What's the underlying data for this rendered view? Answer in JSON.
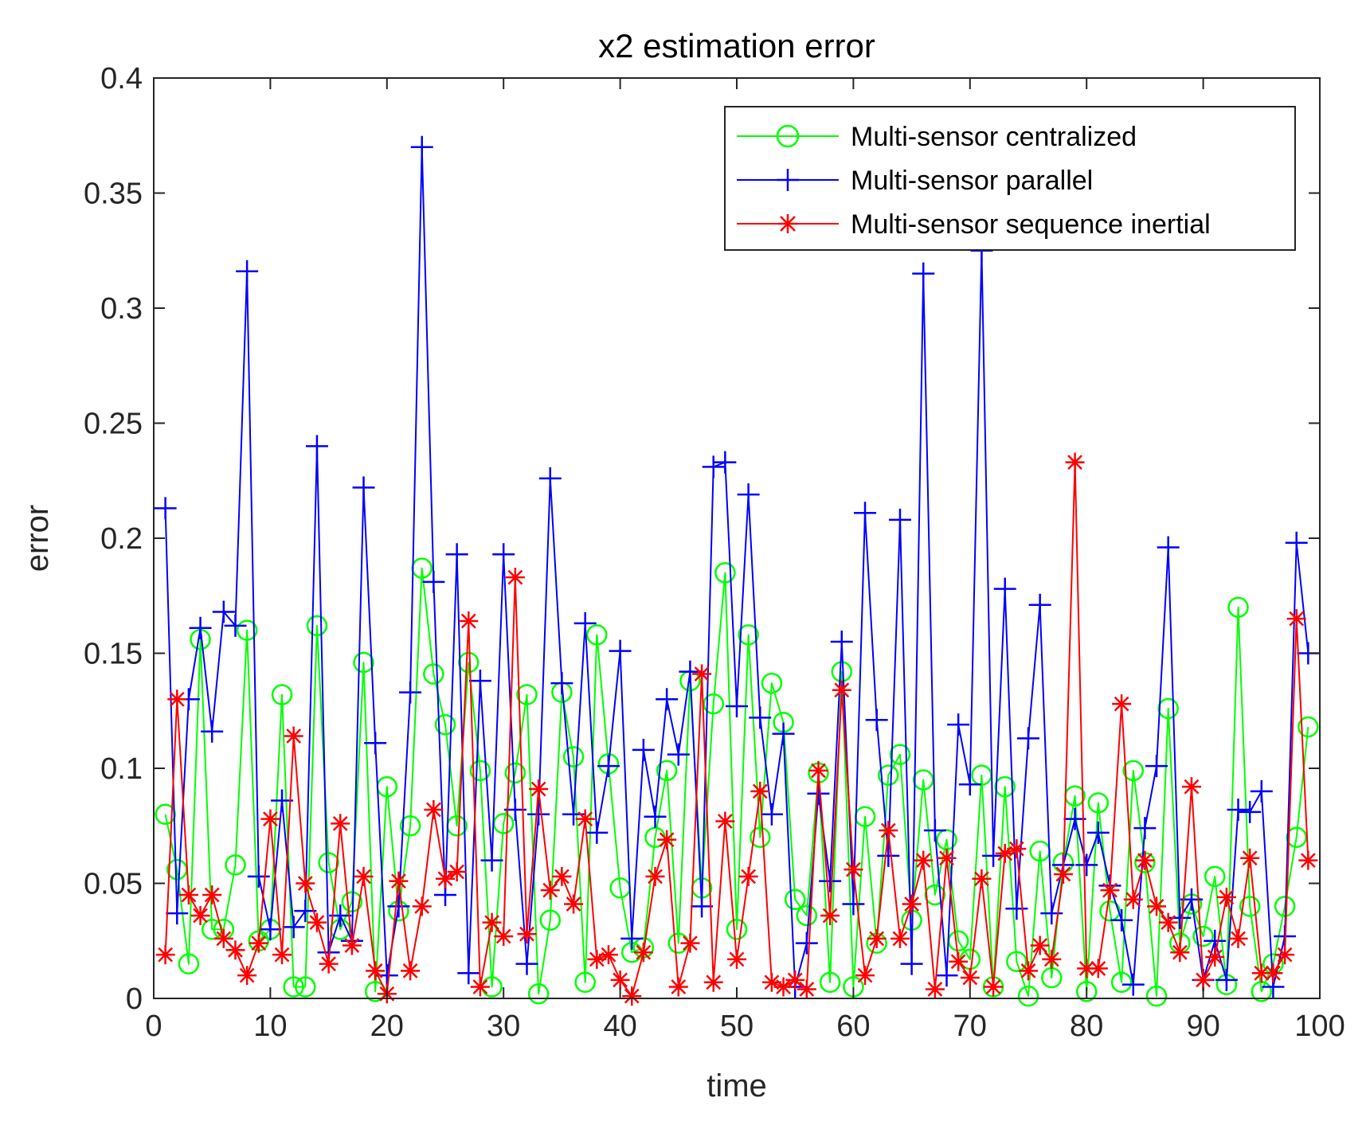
{
  "chart_data": {
    "type": "line",
    "title": "x2 estimation error",
    "xlabel": "time",
    "ylabel": "error",
    "xlim": [
      0,
      100
    ],
    "ylim": [
      0,
      0.4
    ],
    "xticks": [
      0,
      10,
      20,
      30,
      40,
      50,
      60,
      70,
      80,
      90,
      100
    ],
    "yticks": [
      0,
      0.05,
      0.1,
      0.15,
      0.2,
      0.25,
      0.3,
      0.35,
      0.4
    ],
    "xtick_labels": [
      "0",
      "10",
      "20",
      "30",
      "40",
      "50",
      "60",
      "70",
      "80",
      "90",
      "100"
    ],
    "ytick_labels": [
      "0",
      "0.05",
      "0.1",
      "0.15",
      "0.2",
      "0.25",
      "0.3",
      "0.35",
      "0.4"
    ],
    "grid": false,
    "legend_position": "top-right",
    "series": [
      {
        "name": "Multi-sensor centralized",
        "color": "#00ff00",
        "marker": "circle",
        "values": [
          0.08,
          0.056,
          0.015,
          0.156,
          0.03,
          0.03,
          0.058,
          0.16,
          0.025,
          0.03,
          0.132,
          0.005,
          0.005,
          0.162,
          0.059,
          0.03,
          0.042,
          0.146,
          0.003,
          0.092,
          0.038,
          0.075,
          0.187,
          0.141,
          0.119,
          0.075,
          0.146,
          0.099,
          0.005,
          0.076,
          0.098,
          0.132,
          0.002,
          0.034,
          0.133,
          0.105,
          0.007,
          0.158,
          0.102,
          0.048,
          0.02,
          0.022,
          0.07,
          0.099,
          0.024,
          0.138,
          0.048,
          0.128,
          0.185,
          0.03,
          0.158,
          0.07,
          0.137,
          0.12,
          0.043,
          0.036,
          0.098,
          0.007,
          0.142,
          0.005,
          0.079,
          0.024,
          0.097,
          0.106,
          0.034,
          0.095,
          0.045,
          0.069,
          0.025,
          0.017,
          0.097,
          0.005,
          0.092,
          0.016,
          0.001,
          0.064,
          0.009,
          0.059,
          0.088,
          0.003,
          0.085,
          0.038,
          0.007,
          0.099,
          0.059,
          0.001,
          0.126,
          0.024,
          0.041,
          0.027,
          0.053,
          0.006,
          0.17,
          0.04,
          0.003,
          0.015,
          0.04,
          0.07,
          0.118
        ]
      },
      {
        "name": "Multi-sensor parallel",
        "color": "#0000ff",
        "marker": "plus",
        "values": [
          0.213,
          0.037,
          0.13,
          0.161,
          0.116,
          0.168,
          0.162,
          0.316,
          0.053,
          0.03,
          0.086,
          0.031,
          0.038,
          0.24,
          0.02,
          0.036,
          0.025,
          0.222,
          0.111,
          0.01,
          0.04,
          0.133,
          0.37,
          0.181,
          0.045,
          0.193,
          0.011,
          0.138,
          0.06,
          0.193,
          0.082,
          0.015,
          0.08,
          0.226,
          0.137,
          0.08,
          0.163,
          0.072,
          0.101,
          0.151,
          0.026,
          0.108,
          0.079,
          0.13,
          0.106,
          0.142,
          0.04,
          0.231,
          0.233,
          0.127,
          0.219,
          0.122,
          0.08,
          0.115,
          0.005,
          0.024,
          0.089,
          0.051,
          0.155,
          0.041,
          0.211,
          0.121,
          0.062,
          0.208,
          0.015,
          0.315,
          0.073,
          0.01,
          0.119,
          0.093,
          0.325,
          0.062,
          0.178,
          0.039,
          0.113,
          0.171,
          0.037,
          0.058,
          0.078,
          0.058,
          0.072,
          0.049,
          0.034,
          0.006,
          0.074,
          0.101,
          0.196,
          0.035,
          0.043,
          0.008,
          0.025,
          0.008,
          0.082,
          0.081,
          0.09,
          0.005,
          0.027,
          0.198,
          0.15
        ]
      },
      {
        "name": "Multi-sensor sequence inertial",
        "color": "#ff0000",
        "marker": "asterisk",
        "values": [
          0.019,
          0.13,
          0.045,
          0.036,
          0.045,
          0.026,
          0.021,
          0.01,
          0.024,
          0.078,
          0.019,
          0.114,
          0.05,
          0.033,
          0.015,
          0.076,
          0.023,
          0.053,
          0.012,
          0.002,
          0.051,
          0.012,
          0.04,
          0.082,
          0.052,
          0.055,
          0.164,
          0.005,
          0.033,
          0.027,
          0.183,
          0.028,
          0.091,
          0.047,
          0.053,
          0.041,
          0.078,
          0.017,
          0.019,
          0.008,
          0.001,
          0.02,
          0.053,
          0.069,
          0.005,
          0.024,
          0.141,
          0.007,
          0.077,
          0.017,
          0.053,
          0.09,
          0.007,
          0.005,
          0.008,
          0.004,
          0.099,
          0.036,
          0.134,
          0.056,
          0.01,
          0.026,
          0.073,
          0.026,
          0.041,
          0.06,
          0.004,
          0.061,
          0.016,
          0.009,
          0.052,
          0.005,
          0.063,
          0.065,
          0.012,
          0.023,
          0.017,
          0.054,
          0.233,
          0.013,
          0.013,
          0.047,
          0.128,
          0.043,
          0.06,
          0.04,
          0.033,
          0.02,
          0.092,
          0.008,
          0.018,
          0.044,
          0.026,
          0.061,
          0.011,
          0.011,
          0.019,
          0.165,
          0.06
        ]
      }
    ]
  }
}
